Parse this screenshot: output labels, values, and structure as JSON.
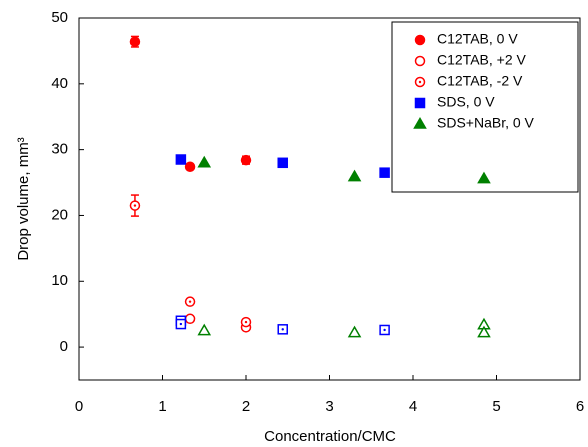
{
  "chart_data": {
    "type": "scatter",
    "xlabel": "Concentration/CMC",
    "ylabel": "Drop volume, mm³",
    "xlim": [
      0,
      6
    ],
    "xticks": [
      0,
      1,
      2,
      3,
      4,
      5,
      6
    ],
    "ylim": [
      -5,
      50
    ],
    "yticks": [
      0,
      10,
      20,
      30,
      40,
      50
    ],
    "legend": "upper right",
    "series": [
      {
        "name": "C12TAB, 0 V",
        "color": "#ff0000",
        "marker": "circle",
        "fill": "filled",
        "x": [
          0.67,
          1.33,
          2.0
        ],
        "values": [
          46.4,
          27.4,
          28.4
        ],
        "errors": [
          0.8,
          null,
          0.6
        ]
      },
      {
        "name": "C12TAB, +2 V",
        "color": "#ff0000",
        "marker": "circle",
        "fill": "open",
        "x": [
          1.33,
          2.0
        ],
        "values": [
          4.3,
          3.0
        ]
      },
      {
        "name": "C12TAB, -2 V",
        "color": "#ff0000",
        "marker": "circle",
        "fill": "dotted",
        "x": [
          0.67,
          1.33,
          2.0
        ],
        "values": [
          21.5,
          6.9,
          3.8
        ],
        "errors": [
          1.6,
          null,
          null
        ]
      },
      {
        "name": "SDS, 0 V",
        "color": "#0000ff",
        "marker": "square",
        "fill": "filled",
        "x": [
          1.22,
          2.44,
          3.66
        ],
        "values": [
          28.5,
          28.0,
          26.5
        ]
      },
      {
        "name": "SDS+NaBr, 0 V",
        "color": "#008000",
        "marker": "triangle",
        "fill": "filled",
        "x": [
          1.5,
          3.3,
          4.85
        ],
        "values": [
          28.0,
          25.9,
          25.6
        ]
      },
      {
        "color": "#0000ff",
        "marker": "square",
        "fill": "dotted",
        "x": [
          1.22,
          1.22,
          2.44,
          3.66
        ],
        "values": [
          4.0,
          3.5,
          2.7,
          2.6
        ]
      },
      {
        "color": "#008000",
        "marker": "triangle",
        "fill": "open",
        "x": [
          1.5,
          3.3,
          4.85,
          4.85
        ],
        "values": [
          2.5,
          2.2,
          3.4,
          2.2
        ]
      }
    ]
  }
}
